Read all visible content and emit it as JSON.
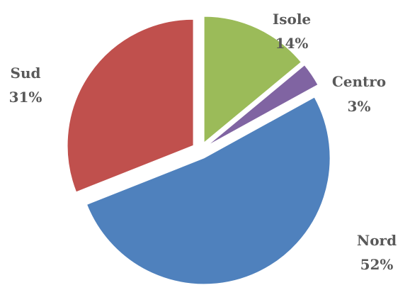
{
  "chart_data": {
    "type": "pie",
    "title": "",
    "slices": [
      {
        "name": "Isole",
        "value": 14,
        "value_label": "14%",
        "color": "#9BBB59"
      },
      {
        "name": "Centro",
        "value": 3,
        "value_label": "3%",
        "color": "#8064A2"
      },
      {
        "name": "Nord",
        "value": 52,
        "value_label": "52%",
        "color": "#4F81BD"
      },
      {
        "name": "Sud",
        "value": 31,
        "value_label": "31%",
        "color": "#C0504D"
      }
    ],
    "start_angle_deg": 0,
    "direction": "clockwise",
    "exploded": true,
    "legend": "none"
  }
}
